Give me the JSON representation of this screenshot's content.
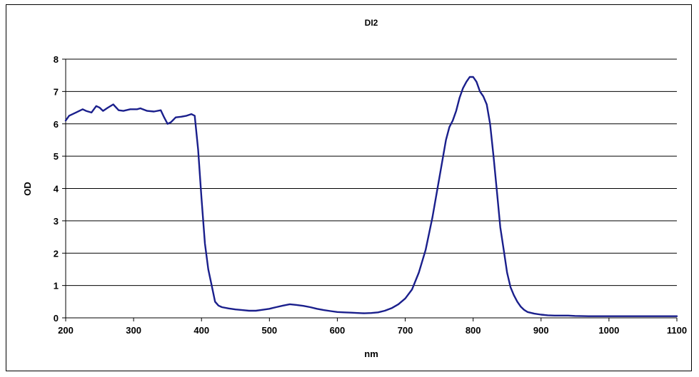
{
  "chart_data": {
    "type": "line",
    "title": "DI2",
    "xlabel": "nm",
    "ylabel": "OD",
    "xlim": [
      200,
      1100
    ],
    "ylim": [
      0,
      8
    ],
    "xticks": [
      200,
      300,
      400,
      500,
      600,
      700,
      800,
      900,
      1000,
      1100
    ],
    "yticks": [
      0,
      1,
      2,
      3,
      4,
      5,
      6,
      7,
      8
    ],
    "grid": "horizontal",
    "legend": "none",
    "colors": {
      "line": "#1a1f8c",
      "grid": "#000000",
      "plot_bg": "#ffffff"
    },
    "series": [
      {
        "x": [
          200,
          205,
          215,
          225,
          230,
          238,
          245,
          250,
          255,
          262,
          270,
          278,
          285,
          295,
          305,
          310,
          320,
          330,
          340,
          345,
          350,
          355,
          362,
          370,
          378,
          385,
          390,
          395,
          400,
          405,
          410,
          415,
          420,
          425,
          430,
          440,
          450,
          460,
          470,
          480,
          490,
          500,
          510,
          520,
          530,
          540,
          550,
          560,
          570,
          580,
          590,
          600,
          610,
          620,
          630,
          640,
          650,
          660,
          670,
          680,
          690,
          700,
          710,
          720,
          730,
          740,
          750,
          760,
          765,
          770,
          775,
          780,
          785,
          790,
          795,
          800,
          805,
          810,
          815,
          820,
          825,
          830,
          835,
          840,
          845,
          850,
          855,
          860,
          865,
          870,
          875,
          880,
          890,
          900,
          910,
          920,
          930,
          940,
          950,
          970,
          1000,
          1010,
          1050,
          1100
        ],
        "y": [
          6.1,
          6.25,
          6.35,
          6.45,
          6.4,
          6.35,
          6.55,
          6.5,
          6.4,
          6.5,
          6.6,
          6.42,
          6.4,
          6.45,
          6.45,
          6.48,
          6.4,
          6.38,
          6.42,
          6.2,
          6.0,
          6.05,
          6.2,
          6.22,
          6.25,
          6.3,
          6.25,
          5.2,
          3.7,
          2.3,
          1.5,
          1.0,
          0.5,
          0.38,
          0.33,
          0.29,
          0.26,
          0.24,
          0.22,
          0.22,
          0.25,
          0.28,
          0.33,
          0.38,
          0.42,
          0.4,
          0.37,
          0.33,
          0.28,
          0.24,
          0.21,
          0.18,
          0.17,
          0.16,
          0.15,
          0.14,
          0.15,
          0.17,
          0.22,
          0.3,
          0.42,
          0.6,
          0.88,
          1.4,
          2.1,
          3.1,
          4.3,
          5.5,
          5.9,
          6.1,
          6.4,
          6.8,
          7.1,
          7.3,
          7.45,
          7.45,
          7.3,
          7.0,
          6.85,
          6.6,
          6.0,
          5.0,
          3.9,
          2.8,
          2.1,
          1.4,
          0.95,
          0.7,
          0.5,
          0.35,
          0.25,
          0.18,
          0.13,
          0.1,
          0.08,
          0.07,
          0.07,
          0.07,
          0.06,
          0.05,
          0.05,
          0.05,
          0.05,
          0.05
        ]
      }
    ]
  }
}
